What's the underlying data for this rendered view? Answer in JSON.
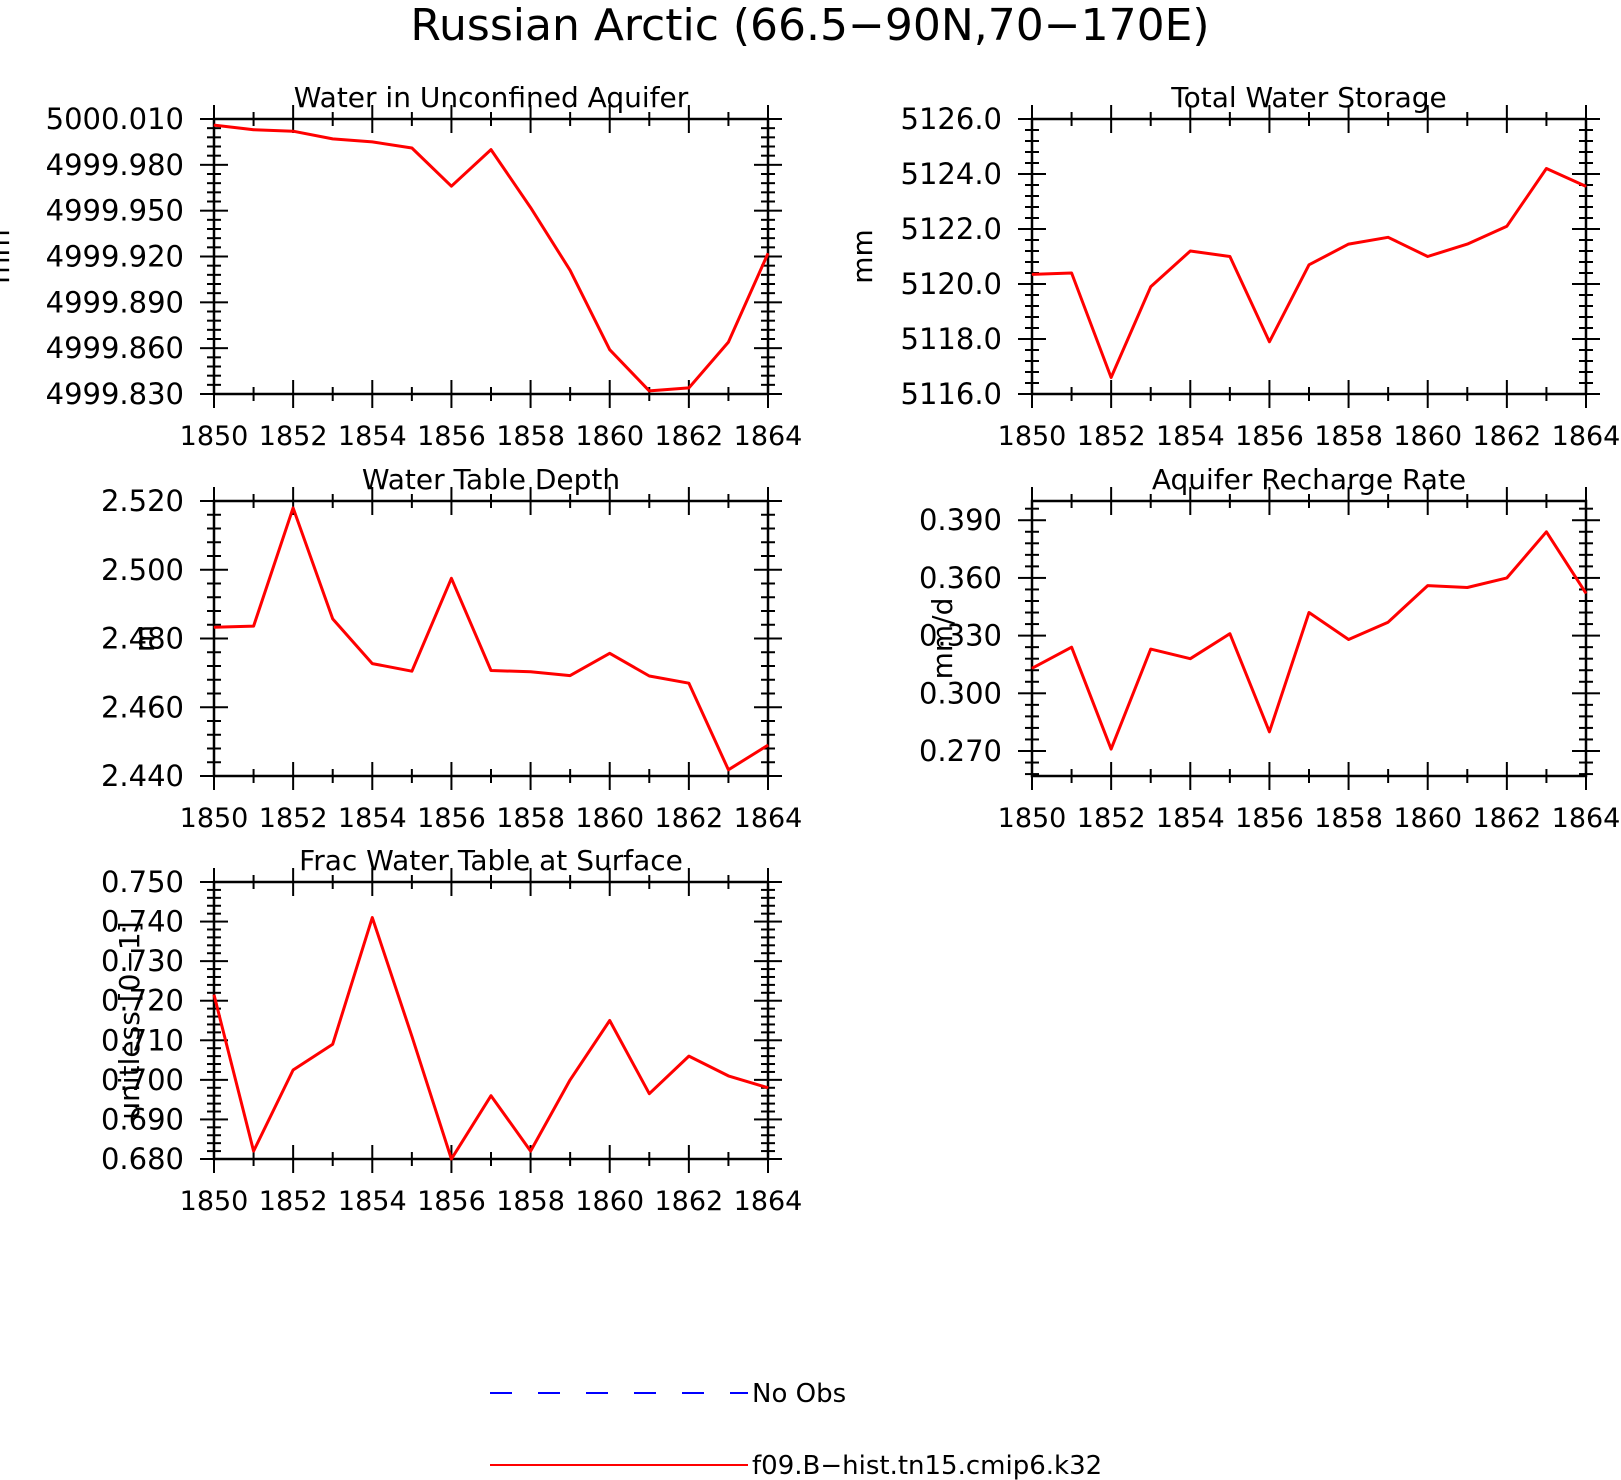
{
  "figure": {
    "title": "Russian Arctic (66.5−90N,70−170E)"
  },
  "legend": {
    "entries": [
      {
        "label": "No Obs",
        "color": "#0000ff",
        "style": "dashed"
      },
      {
        "label": "f09.B−hist.tn15.cmip6.k32",
        "color": "#ff0000",
        "style": "solid"
      }
    ]
  },
  "chart_data": [
    {
      "type": "line",
      "title": "Water in Unconfined Aquifer",
      "ylabel": "mm",
      "xlabel": "",
      "xlim": [
        1850,
        1864
      ],
      "ylim": [
        4999.83,
        5000.01
      ],
      "x_ticks": [
        "1850",
        "1852",
        "1854",
        "1856",
        "1858",
        "1860",
        "1862",
        "1864"
      ],
      "y_ticks": [
        "4999.830",
        "4999.860",
        "4999.890",
        "4999.920",
        "4999.950",
        "4999.980",
        "5000.010"
      ],
      "series": [
        {
          "color": "#ff0000",
          "x": [
            1850,
            1851,
            1852,
            1853,
            1854,
            1855,
            1856,
            1857,
            1858,
            1859,
            1860,
            1861,
            1862,
            1863,
            1864
          ],
          "values": [
            5000.006,
            5000.003,
            5000.002,
            4999.997,
            4999.995,
            4999.991,
            4999.966,
            4999.99,
            4999.952,
            4999.911,
            4999.859,
            4999.832,
            4999.834,
            4999.864,
            4999.922
          ]
        }
      ]
    },
    {
      "type": "line",
      "title": "Total Water Storage",
      "ylabel": "mm",
      "xlabel": "",
      "xlim": [
        1850,
        1864
      ],
      "ylim": [
        5116.0,
        5126.0
      ],
      "x_ticks": [
        "1850",
        "1852",
        "1854",
        "1856",
        "1858",
        "1860",
        "1862",
        "1864"
      ],
      "y_ticks": [
        "5116.0",
        "5118.0",
        "5120.0",
        "5122.0",
        "5124.0",
        "5126.0"
      ],
      "series": [
        {
          "color": "#ff0000",
          "x": [
            1850,
            1851,
            1852,
            1853,
            1854,
            1855,
            1856,
            1857,
            1858,
            1859,
            1860,
            1861,
            1862,
            1863,
            1864
          ],
          "values": [
            5120.35,
            5120.4,
            5116.6,
            5119.9,
            5121.2,
            5121.0,
            5117.9,
            5120.7,
            5121.45,
            5121.7,
            5121.0,
            5121.45,
            5122.1,
            5124.2,
            5123.55
          ]
        }
      ]
    },
    {
      "type": "line",
      "title": "Water Table Depth",
      "ylabel": "m",
      "xlabel": "",
      "xlim": [
        1850,
        1864
      ],
      "ylim": [
        2.44,
        2.52
      ],
      "x_ticks": [
        "1850",
        "1852",
        "1854",
        "1856",
        "1858",
        "1860",
        "1862",
        "1864"
      ],
      "y_ticks": [
        "2.440",
        "2.460",
        "2.480",
        "2.500",
        "2.520"
      ],
      "series": [
        {
          "color": "#ff0000",
          "x": [
            1850,
            1851,
            1852,
            1853,
            1854,
            1855,
            1856,
            1857,
            1858,
            1859,
            1860,
            1861,
            1862,
            1863,
            1864
          ],
          "values": [
            2.4833,
            2.4836,
            2.518,
            2.4857,
            2.4727,
            2.4705,
            2.4975,
            2.4707,
            2.4703,
            2.4692,
            2.4757,
            2.4691,
            2.467,
            2.4418,
            2.449
          ]
        }
      ]
    },
    {
      "type": "line",
      "title": "Aquifer Recharge Rate",
      "ylabel": "mm/d",
      "xlabel": "",
      "xlim": [
        1850,
        1864
      ],
      "ylim": [
        0.257,
        0.4
      ],
      "x_ticks": [
        "1850",
        "1852",
        "1854",
        "1856",
        "1858",
        "1860",
        "1862",
        "1864"
      ],
      "y_ticks": [
        "0.270",
        "0.300",
        "0.330",
        "0.360",
        "0.390"
      ],
      "series": [
        {
          "color": "#ff0000",
          "x": [
            1850,
            1851,
            1852,
            1853,
            1854,
            1855,
            1856,
            1857,
            1858,
            1859,
            1860,
            1861,
            1862,
            1863,
            1864
          ],
          "values": [
            0.313,
            0.324,
            0.271,
            0.323,
            0.318,
            0.331,
            0.28,
            0.342,
            0.328,
            0.337,
            0.356,
            0.355,
            0.36,
            0.384,
            0.352
          ]
        }
      ]
    },
    {
      "type": "line",
      "title": "Frac Water Table at Surface",
      "ylabel": "unitless [0−1]",
      "xlabel": "",
      "xlim": [
        1850,
        1864
      ],
      "ylim": [
        0.68,
        0.75
      ],
      "x_ticks": [
        "1850",
        "1852",
        "1854",
        "1856",
        "1858",
        "1860",
        "1862",
        "1864"
      ],
      "y_ticks": [
        "0.680",
        "0.690",
        "0.700",
        "0.710",
        "0.720",
        "0.730",
        "0.740",
        "0.750"
      ],
      "series": [
        {
          "color": "#ff0000",
          "x": [
            1850,
            1851,
            1852,
            1853,
            1854,
            1855,
            1856,
            1857,
            1858,
            1859,
            1860,
            1861,
            1862,
            1863,
            1864
          ],
          "values": [
            0.7215,
            0.682,
            0.7025,
            0.709,
            0.741,
            0.711,
            0.68,
            0.696,
            0.682,
            0.7,
            0.715,
            0.6965,
            0.706,
            0.701,
            0.698
          ]
        }
      ]
    }
  ]
}
